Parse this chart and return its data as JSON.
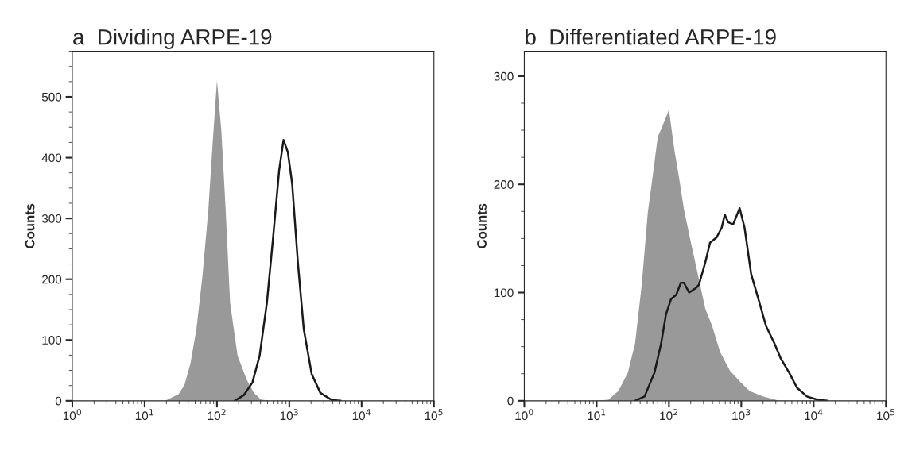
{
  "chart_data": [
    {
      "type": "line",
      "title": "a  Dividing ARPE-19",
      "ylabel": "Counts",
      "log": "x",
      "grid": false,
      "legend": false,
      "xlim": [
        1,
        100000
      ],
      "ylim": [
        0,
        575
      ],
      "xticks": [
        {
          "value": 1,
          "label": "10$^{0}$"
        },
        {
          "value": 10,
          "label": "10$^{1}$"
        },
        {
          "value": 100,
          "label": "10$^{2}$"
        },
        {
          "value": 1000,
          "label": "10$^{3}$"
        },
        {
          "value": 10000,
          "label": "10$^{4}$"
        },
        {
          "value": 100000,
          "label": "10$^{5}$"
        }
      ],
      "yticks": [
        0,
        100,
        200,
        300,
        400,
        500
      ],
      "series": [
        {
          "type": "area",
          "color": "#999999",
          "x": [
            20,
            29.5,
            35.5,
            43,
            52,
            63,
            76,
            87,
            100,
            115,
            132,
            152,
            193,
            257,
            324,
            405,
            537
          ],
          "values": [
            1,
            11,
            26,
            61,
            118,
            205,
            314,
            422,
            527,
            444,
            314,
            161,
            74,
            35,
            13,
            2,
            0
          ]
        },
        {
          "color": "#1a1a1a",
          "x": [
            176,
            234,
            309,
            389,
            490,
            599,
            724,
            832,
            955,
            1096,
            1318,
            1585,
            2040,
            2690,
            3890,
            5130
          ],
          "values": [
            0,
            9,
            30,
            74,
            161,
            270,
            379,
            429,
            409,
            357,
            226,
            118,
            44,
            13,
            1,
            0
          ]
        }
      ]
    },
    {
      "type": "line",
      "title": "b  Differentiated ARPE-19",
      "ylabel": "Counts",
      "log": "x",
      "grid": false,
      "legend": false,
      "xlim": [
        1,
        100000
      ],
      "ylim": [
        0,
        323
      ],
      "xticks": [
        {
          "value": 1,
          "label": "10$^{0}$"
        },
        {
          "value": 10,
          "label": "10$^{1}$"
        },
        {
          "value": 100,
          "label": "10$^{2}$"
        },
        {
          "value": 1000,
          "label": "10$^{3}$"
        },
        {
          "value": 10000,
          "label": "10$^{4}$"
        },
        {
          "value": 100000,
          "label": "10$^{5}$"
        }
      ],
      "yticks": [
        0,
        100,
        200,
        300
      ],
      "series": [
        {
          "type": "area",
          "color": "#999999",
          "x": [
            10,
            14.5,
            20,
            27,
            34,
            42,
            51,
            63,
            70,
            78,
            86,
            100,
            118,
            138,
            161,
            200,
            245,
            318,
            392,
            510,
            695,
            950,
            1300,
            1980,
            3340,
            4900
          ],
          "values": [
            0,
            1,
            9,
            26,
            53,
            107,
            174,
            220,
            244,
            251,
            258,
            269,
            233,
            206,
            177,
            147,
            120,
            85,
            70,
            45,
            28,
            18,
            9,
            4,
            0,
            0
          ]
        },
        {
          "color": "#1a1a1a",
          "x": [
            34,
            46,
            63,
            78,
            91,
            107,
            126,
            146,
            161,
            190,
            234,
            259,
            318,
            370,
            456,
            536,
            592,
            658,
            772,
            950,
            1110,
            1370,
            1690,
            2200,
            2870,
            3520,
            4590,
            5900,
            8080,
            11300,
            15500
          ],
          "values": [
            0,
            4,
            26,
            53,
            80,
            94,
            98,
            109,
            109,
            100,
            104,
            107,
            128,
            146,
            151,
            160,
            172,
            165,
            163,
            178,
            160,
            117,
            96,
            69,
            53,
            39,
            26,
            12,
            4,
            1,
            0
          ]
        }
      ]
    }
  ]
}
